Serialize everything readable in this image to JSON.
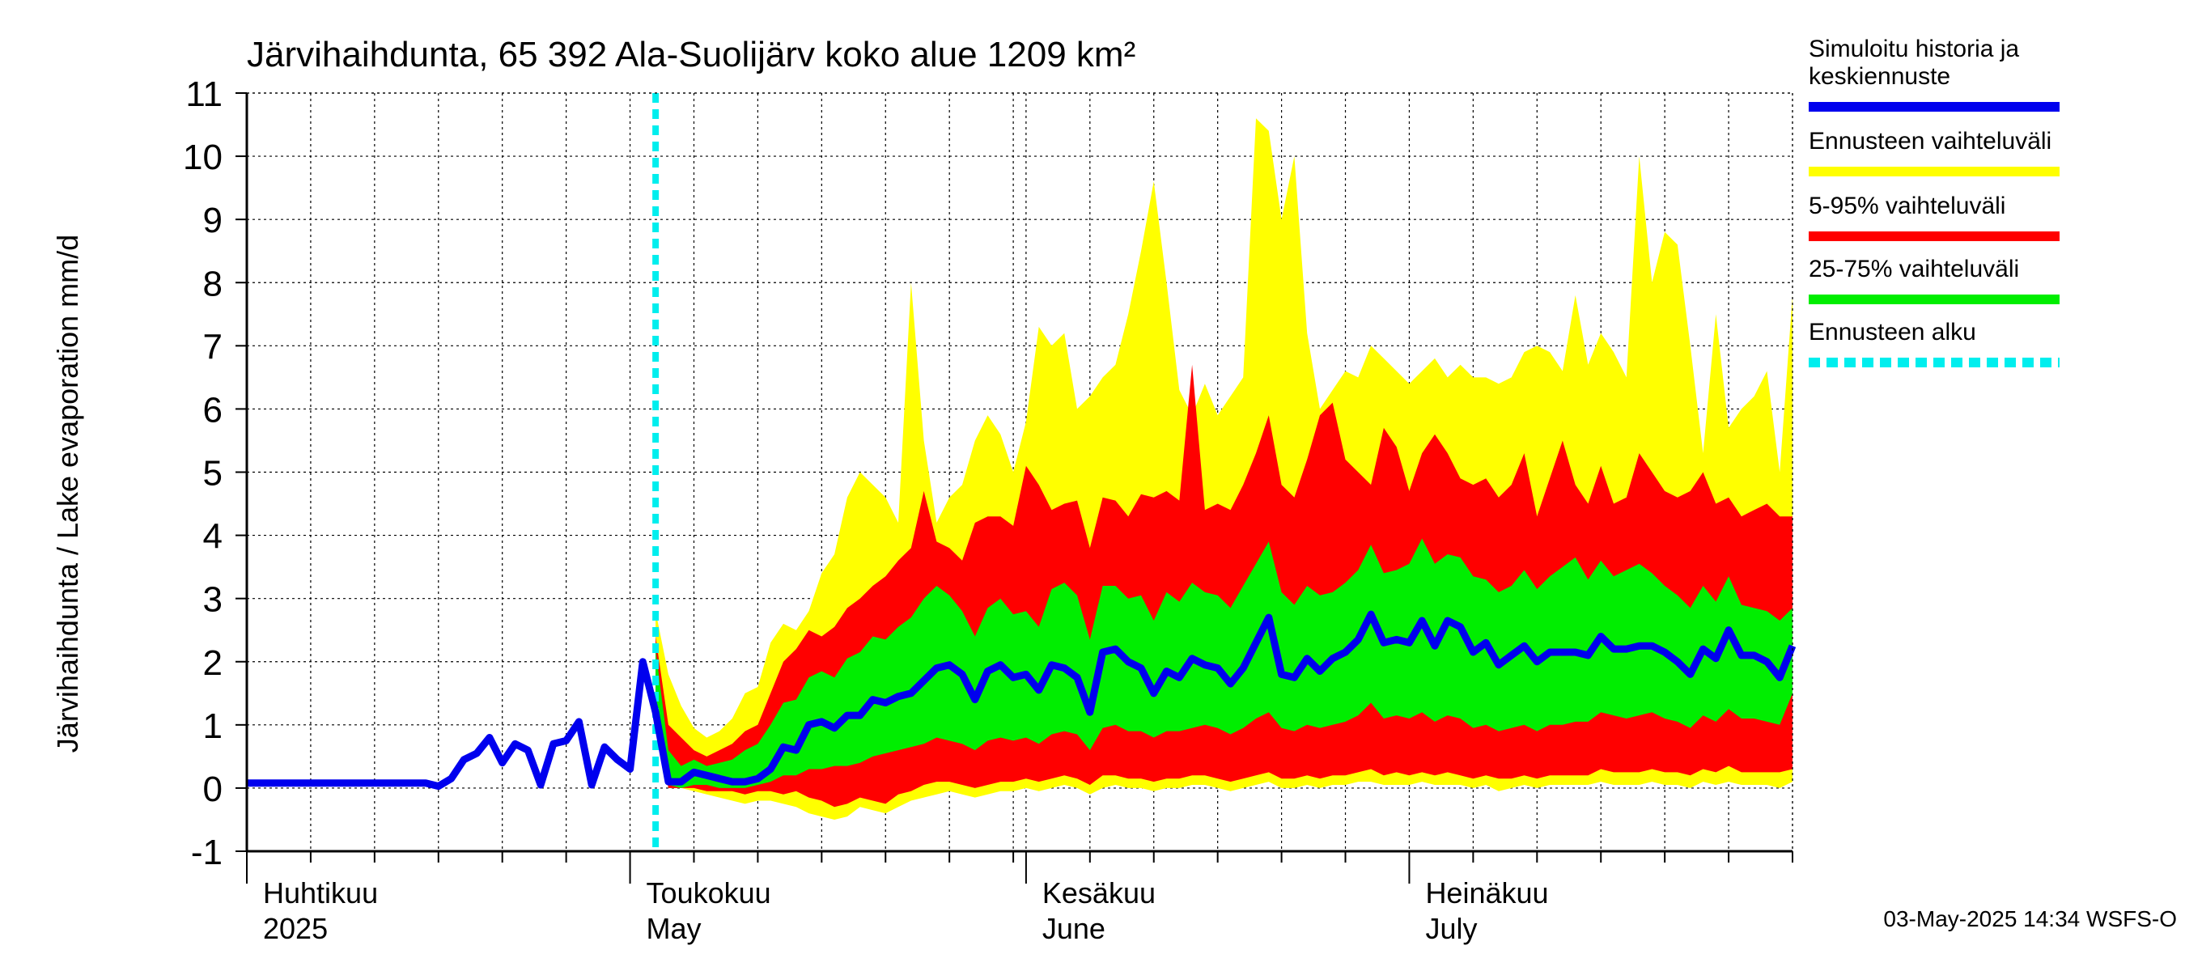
{
  "chart_data": {
    "type": "area",
    "title": "Järvihaihdunta, 65 392 Ala-Suolijärv koko alue 1209 km²",
    "ylabel": "Järvihaihdunta / Lake evaporation   mm/d",
    "ylim": [
      -1,
      11
    ],
    "yticks": [
      -1,
      0,
      1,
      2,
      3,
      4,
      5,
      6,
      7,
      8,
      9,
      10,
      11
    ],
    "grid": true,
    "x_start": "2025-04-01",
    "x_end": "2025-07-31",
    "forecast_start": "2025-05-03",
    "month_labels": [
      {
        "fi": "Huhtikuu",
        "en": "2025",
        "date": "2025-04-01"
      },
      {
        "fi": "Toukokuu",
        "en": "May",
        "date": "2025-05-01"
      },
      {
        "fi": "Kesäkuu",
        "en": "June",
        "date": "2025-06-01"
      },
      {
        "fi": "Heinäkuu",
        "en": "July",
        "date": "2025-07-01"
      }
    ],
    "legend": {
      "placement": "right",
      "items": [
        {
          "label": "Simuloitu historia ja keskiennuste",
          "color": "#0000ee",
          "style": "solid"
        },
        {
          "label": "Ennusteen vaihteluväli",
          "color": "#ffff00",
          "style": "solid"
        },
        {
          "label": "5-95% vaihteluväli",
          "color": "#ff0000",
          "style": "solid"
        },
        {
          "label": "25-75% vaihteluväli",
          "color": "#00ee00",
          "style": "solid"
        },
        {
          "label": "Ennusteen alku",
          "color": "#00eeee",
          "style": "dashed"
        }
      ]
    },
    "history": {
      "name": "Simuloitu historia ja keskiennuste",
      "x": [
        "2025-04-01",
        "2025-04-02",
        "2025-04-03",
        "2025-04-04",
        "2025-04-05",
        "2025-04-06",
        "2025-04-07",
        "2025-04-08",
        "2025-04-09",
        "2025-04-10",
        "2025-04-11",
        "2025-04-12",
        "2025-04-13",
        "2025-04-14",
        "2025-04-15",
        "2025-04-16",
        "2025-04-17",
        "2025-04-18",
        "2025-04-19",
        "2025-04-20",
        "2025-04-21",
        "2025-04-22",
        "2025-04-23",
        "2025-04-24",
        "2025-04-25",
        "2025-04-26",
        "2025-04-27",
        "2025-04-28",
        "2025-04-29",
        "2025-04-30",
        "2025-05-01",
        "2025-05-02",
        "2025-05-03"
      ],
      "y": [
        0.08,
        0.08,
        0.08,
        0.08,
        0.08,
        0.08,
        0.08,
        0.08,
        0.08,
        0.08,
        0.08,
        0.08,
        0.08,
        0.08,
        0.08,
        0.03,
        0.15,
        0.45,
        0.55,
        0.8,
        0.4,
        0.7,
        0.6,
        0.05,
        0.7,
        0.75,
        1.05,
        0.05,
        0.65,
        0.45,
        0.3,
        2.0,
        1.2
      ]
    },
    "forecast": {
      "x": [
        "2025-05-03",
        "2025-05-04",
        "2025-05-05",
        "2025-05-06",
        "2025-05-07",
        "2025-05-08",
        "2025-05-09",
        "2025-05-10",
        "2025-05-11",
        "2025-05-12",
        "2025-05-13",
        "2025-05-14",
        "2025-05-15",
        "2025-05-16",
        "2025-05-17",
        "2025-05-18",
        "2025-05-19",
        "2025-05-20",
        "2025-05-21",
        "2025-05-22",
        "2025-05-23",
        "2025-05-24",
        "2025-05-25",
        "2025-05-26",
        "2025-05-27",
        "2025-05-28",
        "2025-05-29",
        "2025-05-30",
        "2025-05-31",
        "2025-06-01",
        "2025-06-02",
        "2025-06-03",
        "2025-06-04",
        "2025-06-05",
        "2025-06-06",
        "2025-06-07",
        "2025-06-08",
        "2025-06-09",
        "2025-06-10",
        "2025-06-11",
        "2025-06-12",
        "2025-06-13",
        "2025-06-14",
        "2025-06-15",
        "2025-06-16",
        "2025-06-17",
        "2025-06-18",
        "2025-06-19",
        "2025-06-20",
        "2025-06-21",
        "2025-06-22",
        "2025-06-23",
        "2025-06-24",
        "2025-06-25",
        "2025-06-26",
        "2025-06-27",
        "2025-06-28",
        "2025-06-29",
        "2025-06-30",
        "2025-07-01",
        "2025-07-02",
        "2025-07-03",
        "2025-07-04",
        "2025-07-05",
        "2025-07-06",
        "2025-07-07",
        "2025-07-08",
        "2025-07-09",
        "2025-07-10",
        "2025-07-11",
        "2025-07-12",
        "2025-07-13",
        "2025-07-14",
        "2025-07-15",
        "2025-07-16",
        "2025-07-17",
        "2025-07-18",
        "2025-07-19",
        "2025-07-20",
        "2025-07-21",
        "2025-07-22",
        "2025-07-23",
        "2025-07-24",
        "2025-07-25",
        "2025-07-26",
        "2025-07-27",
        "2025-07-28",
        "2025-07-29",
        "2025-07-30",
        "2025-07-31"
      ],
      "median": [
        1.2,
        0.1,
        0.1,
        0.25,
        0.2,
        0.15,
        0.1,
        0.1,
        0.15,
        0.3,
        0.65,
        0.6,
        1.0,
        1.05,
        0.95,
        1.15,
        1.15,
        1.4,
        1.35,
        1.45,
        1.5,
        1.7,
        1.9,
        1.95,
        1.8,
        1.4,
        1.85,
        1.95,
        1.75,
        1.8,
        1.55,
        1.95,
        1.9,
        1.75,
        1.2,
        2.15,
        2.2,
        2.0,
        1.9,
        1.5,
        1.85,
        1.75,
        2.05,
        1.95,
        1.9,
        1.65,
        1.9,
        2.3,
        2.7,
        1.8,
        1.75,
        2.05,
        1.85,
        2.05,
        2.15,
        2.35,
        2.75,
        2.3,
        2.35,
        2.3,
        2.65,
        2.25,
        2.65,
        2.55,
        2.15,
        2.3,
        1.95,
        2.1,
        2.25,
        2.0,
        2.15,
        2.15,
        2.15,
        2.1,
        2.4,
        2.2,
        2.2,
        2.25,
        2.25,
        2.15,
        2.0,
        1.8,
        2.2,
        2.05,
        2.5,
        2.1,
        2.1,
        2.0,
        1.75,
        2.25
      ],
      "p25": [
        1.2,
        0.05,
        0.0,
        0.05,
        0.05,
        0.0,
        0.0,
        0.0,
        0.05,
        0.1,
        0.2,
        0.2,
        0.3,
        0.3,
        0.35,
        0.35,
        0.4,
        0.5,
        0.55,
        0.6,
        0.65,
        0.7,
        0.8,
        0.75,
        0.7,
        0.6,
        0.75,
        0.8,
        0.75,
        0.8,
        0.7,
        0.85,
        0.9,
        0.85,
        0.6,
        0.95,
        1.0,
        0.9,
        0.9,
        0.8,
        0.9,
        0.9,
        0.95,
        1.0,
        0.95,
        0.85,
        0.95,
        1.1,
        1.2,
        0.95,
        0.9,
        1.0,
        0.95,
        1.0,
        1.05,
        1.15,
        1.35,
        1.1,
        1.15,
        1.1,
        1.2,
        1.05,
        1.15,
        1.1,
        0.95,
        1.0,
        0.9,
        0.95,
        1.0,
        0.9,
        1.0,
        1.0,
        1.05,
        1.05,
        1.2,
        1.15,
        1.1,
        1.15,
        1.2,
        1.1,
        1.05,
        0.95,
        1.15,
        1.05,
        1.25,
        1.1,
        1.1,
        1.05,
        1.0,
        1.5
      ],
      "p75": [
        2.2,
        0.6,
        0.35,
        0.45,
        0.35,
        0.4,
        0.45,
        0.6,
        0.7,
        1.0,
        1.35,
        1.4,
        1.75,
        1.85,
        1.75,
        2.05,
        2.15,
        2.4,
        2.35,
        2.55,
        2.7,
        3.0,
        3.2,
        3.05,
        2.8,
        2.4,
        2.85,
        3.0,
        2.75,
        2.8,
        2.55,
        3.15,
        3.25,
        3.05,
        2.35,
        3.2,
        3.2,
        3.0,
        3.05,
        2.65,
        3.1,
        2.95,
        3.25,
        3.1,
        3.05,
        2.85,
        3.2,
        3.55,
        3.9,
        3.1,
        2.9,
        3.2,
        3.05,
        3.1,
        3.25,
        3.45,
        3.85,
        3.4,
        3.45,
        3.55,
        3.95,
        3.55,
        3.7,
        3.65,
        3.35,
        3.3,
        3.1,
        3.2,
        3.45,
        3.15,
        3.35,
        3.5,
        3.65,
        3.3,
        3.6,
        3.35,
        3.45,
        3.55,
        3.4,
        3.2,
        3.05,
        2.85,
        3.2,
        2.95,
        3.35,
        2.9,
        2.85,
        2.8,
        2.65,
        2.85
      ],
      "p05": [
        1.2,
        0.0,
        0.0,
        0.0,
        -0.05,
        -0.05,
        -0.05,
        -0.1,
        -0.05,
        -0.05,
        -0.1,
        -0.05,
        -0.15,
        -0.2,
        -0.3,
        -0.25,
        -0.15,
        -0.2,
        -0.25,
        -0.1,
        -0.05,
        0.05,
        0.1,
        0.1,
        0.05,
        0.0,
        0.05,
        0.1,
        0.1,
        0.15,
        0.1,
        0.15,
        0.2,
        0.15,
        0.05,
        0.2,
        0.2,
        0.15,
        0.15,
        0.1,
        0.15,
        0.15,
        0.2,
        0.2,
        0.15,
        0.1,
        0.15,
        0.2,
        0.25,
        0.15,
        0.15,
        0.2,
        0.15,
        0.2,
        0.2,
        0.25,
        0.3,
        0.2,
        0.25,
        0.2,
        0.25,
        0.2,
        0.25,
        0.2,
        0.15,
        0.2,
        0.15,
        0.15,
        0.2,
        0.15,
        0.2,
        0.2,
        0.2,
        0.2,
        0.3,
        0.25,
        0.25,
        0.25,
        0.3,
        0.25,
        0.25,
        0.2,
        0.3,
        0.25,
        0.35,
        0.25,
        0.25,
        0.25,
        0.25,
        0.3
      ],
      "p95": [
        2.4,
        1.0,
        0.8,
        0.6,
        0.5,
        0.6,
        0.7,
        0.9,
        1.0,
        1.5,
        2.0,
        2.2,
        2.5,
        2.4,
        2.55,
        2.85,
        3.0,
        3.2,
        3.35,
        3.6,
        3.8,
        4.7,
        3.9,
        3.8,
        3.6,
        4.2,
        4.3,
        4.3,
        4.15,
        5.1,
        4.8,
        4.4,
        4.5,
        4.55,
        3.8,
        4.6,
        4.55,
        4.3,
        4.65,
        4.6,
        4.7,
        4.55,
        6.7,
        4.4,
        4.5,
        4.4,
        4.8,
        5.3,
        5.9,
        4.8,
        4.6,
        5.2,
        5.9,
        6.1,
        5.2,
        5.0,
        4.8,
        5.7,
        5.4,
        4.7,
        5.3,
        5.6,
        5.3,
        4.9,
        4.8,
        4.9,
        4.6,
        4.8,
        5.3,
        4.3,
        4.9,
        5.5,
        4.8,
        4.5,
        5.1,
        4.5,
        4.6,
        5.3,
        5.0,
        4.7,
        4.6,
        4.7,
        5.0,
        4.5,
        4.6,
        4.3,
        4.4,
        4.5,
        4.3,
        4.3
      ],
      "min": [
        1.2,
        0.0,
        0.0,
        -0.05,
        -0.1,
        -0.15,
        -0.2,
        -0.25,
        -0.2,
        -0.2,
        -0.25,
        -0.3,
        -0.4,
        -0.45,
        -0.5,
        -0.45,
        -0.3,
        -0.35,
        -0.4,
        -0.3,
        -0.2,
        -0.15,
        -0.1,
        -0.05,
        -0.1,
        -0.15,
        -0.1,
        -0.05,
        -0.05,
        0.0,
        -0.05,
        0.0,
        0.05,
        0.0,
        -0.1,
        0.0,
        0.05,
        0.0,
        0.0,
        -0.05,
        0.0,
        0.0,
        0.05,
        0.05,
        0.0,
        -0.05,
        0.0,
        0.05,
        0.1,
        0.0,
        0.0,
        0.05,
        0.0,
        0.05,
        0.05,
        0.1,
        0.1,
        0.05,
        0.05,
        0.05,
        0.1,
        0.05,
        0.05,
        0.05,
        0.0,
        0.05,
        -0.05,
        0.0,
        0.05,
        0.0,
        0.05,
        0.05,
        0.05,
        0.05,
        0.1,
        0.05,
        0.05,
        0.05,
        0.1,
        0.05,
        0.05,
        0.0,
        0.1,
        0.05,
        0.1,
        0.05,
        0.05,
        0.05,
        0.0,
        0.1
      ],
      "max": [
        2.8,
        1.8,
        1.3,
        0.95,
        0.8,
        0.9,
        1.1,
        1.5,
        1.6,
        2.3,
        2.6,
        2.5,
        2.8,
        3.4,
        3.7,
        4.6,
        5.0,
        4.8,
        4.6,
        4.2,
        8.0,
        5.5,
        4.2,
        4.6,
        4.8,
        5.5,
        5.9,
        5.6,
        5.0,
        5.8,
        7.3,
        7.0,
        7.2,
        6.0,
        6.2,
        6.5,
        6.7,
        7.5,
        8.5,
        9.6,
        8.0,
        6.3,
        5.9,
        6.4,
        5.9,
        6.2,
        6.5,
        10.6,
        10.4,
        9.0,
        10.0,
        7.2,
        6.0,
        6.3,
        6.6,
        6.5,
        7.0,
        6.8,
        6.6,
        6.4,
        6.6,
        6.8,
        6.5,
        6.7,
        6.5,
        6.5,
        6.4,
        6.5,
        6.9,
        7.0,
        6.9,
        6.6,
        7.8,
        6.7,
        7.2,
        6.9,
        6.5,
        10.0,
        8.0,
        8.8,
        8.6,
        7.0,
        5.3,
        7.5,
        5.7,
        6.0,
        6.2,
        6.6,
        5.0,
        7.8
      ]
    },
    "timestamp_text": "03-May-2025 14:34 WSFS-O"
  }
}
